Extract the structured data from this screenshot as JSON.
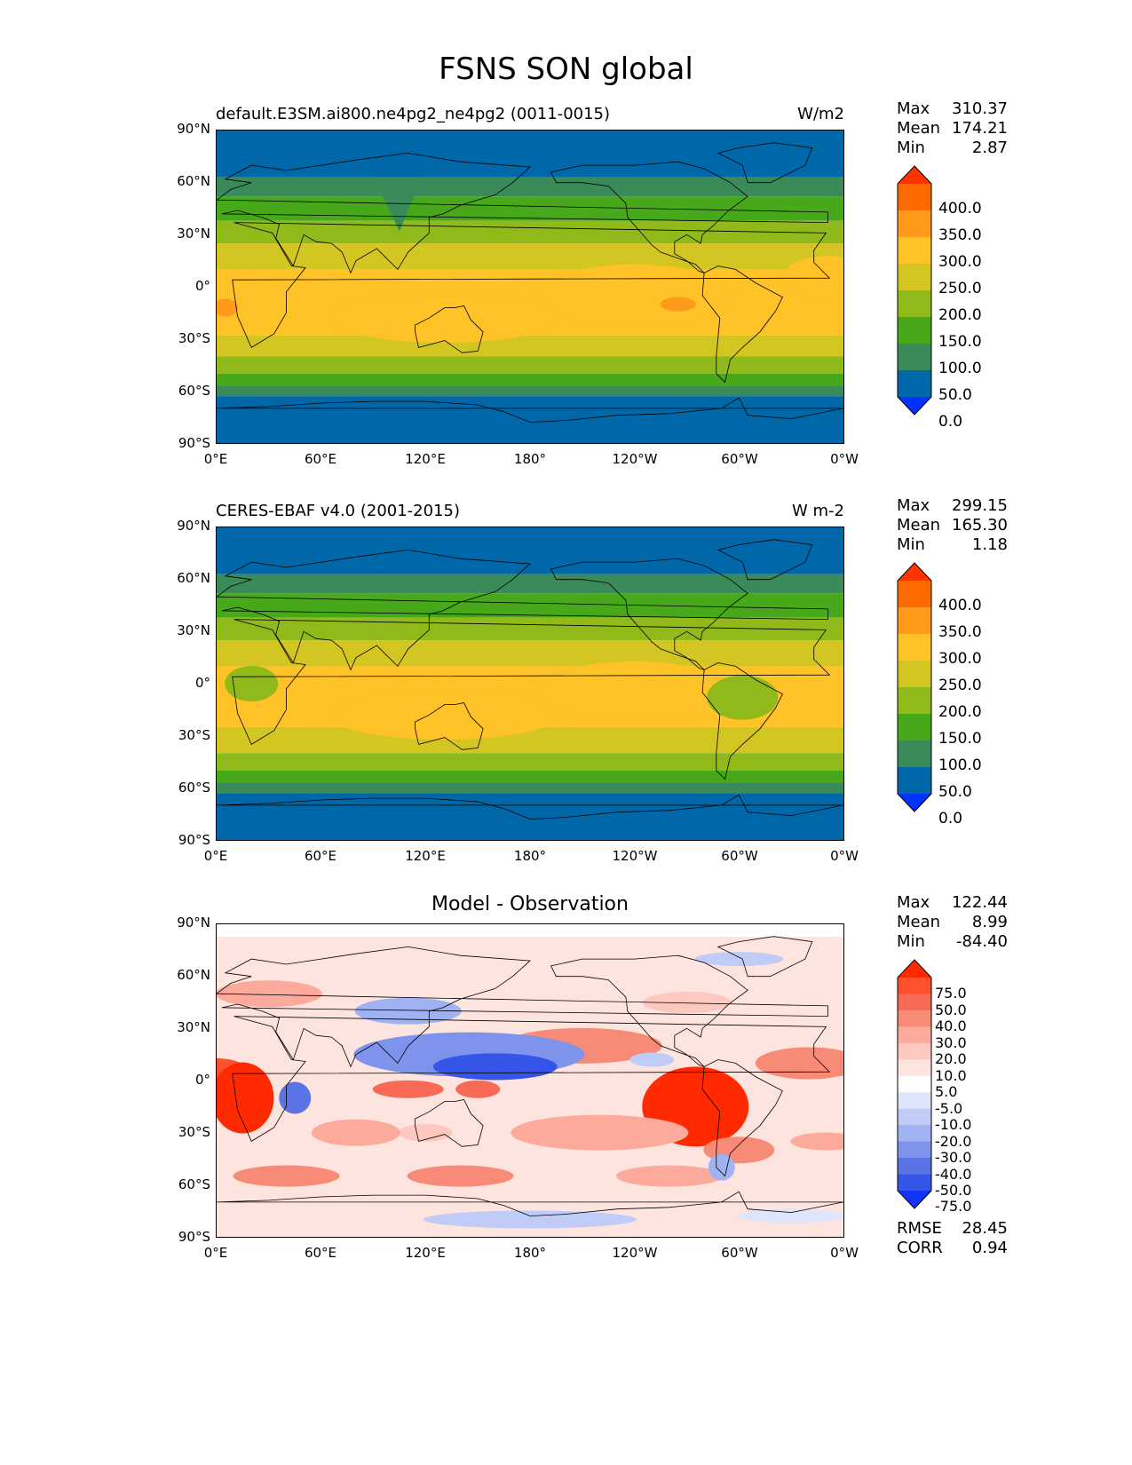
{
  "title": "FSNS SON global",
  "lat_labels": [
    "90°N",
    "60°N",
    "30°N",
    "0°",
    "30°S",
    "60°S",
    "90°S"
  ],
  "lon_labels": [
    "0°E",
    "60°E",
    "120°E",
    "180°",
    "120°W",
    "60°W",
    "0°W"
  ],
  "panels": [
    {
      "label": "default.E3SM.ai800.ne4pg2_ne4pg2 (0011-0015)",
      "units": "W/m2",
      "stats": [
        [
          "Max",
          "310.37"
        ],
        [
          "Mean",
          "174.21"
        ],
        [
          "Min",
          "2.87"
        ]
      ],
      "colorbar": {
        "levels": [
          "400.0",
          "350.0",
          "300.0",
          "250.0",
          "200.0",
          "150.0",
          "100.0",
          "50.0",
          "0.0"
        ],
        "colors": [
          "#ff3300",
          "#ff6a00",
          "#ff9a1a",
          "#ffc227",
          "#d4c622",
          "#8fba1a",
          "#47a81a",
          "#3a8a5a",
          "#0068a8",
          "#0033ff"
        ]
      }
    },
    {
      "label": "CERES-EBAF v4.0 (2001-2015)",
      "units": "W m-2",
      "stats": [
        [
          "Max",
          "299.15"
        ],
        [
          "Mean",
          "165.30"
        ],
        [
          "Min",
          "1.18"
        ]
      ],
      "colorbar": {
        "levels": [
          "400.0",
          "350.0",
          "300.0",
          "250.0",
          "200.0",
          "150.0",
          "100.0",
          "50.0",
          "0.0"
        ],
        "colors": [
          "#ff3300",
          "#ff6a00",
          "#ff9a1a",
          "#ffc227",
          "#d4c622",
          "#8fba1a",
          "#47a81a",
          "#3a8a5a",
          "#0068a8",
          "#0033ff"
        ]
      }
    },
    {
      "label": "Model - Observation",
      "stats": [
        [
          "Max",
          "122.44"
        ],
        [
          "Mean",
          "8.99"
        ],
        [
          "Min",
          "-84.40"
        ]
      ],
      "extra_stats": [
        [
          "RMSE",
          "28.45"
        ],
        [
          "CORR",
          "0.94"
        ]
      ],
      "colorbar": {
        "levels": [
          "75.0",
          "50.0",
          "40.0",
          "30.0",
          "20.0",
          "10.0",
          "5.0",
          "-5.0",
          "-10.0",
          "-20.0",
          "-30.0",
          "-40.0",
          "-50.0",
          "-75.0"
        ],
        "colors": [
          "#ff2a00",
          "#ff5030",
          "#f86a55",
          "#f88a78",
          "#fbaa9c",
          "#fdc8bf",
          "#fee4df",
          "#ffffff",
          "#dfe5fb",
          "#c0ccf7",
          "#a0b2f2",
          "#7d93ec",
          "#5a74e6",
          "#3555e8",
          "#1033ff"
        ]
      }
    }
  ]
}
